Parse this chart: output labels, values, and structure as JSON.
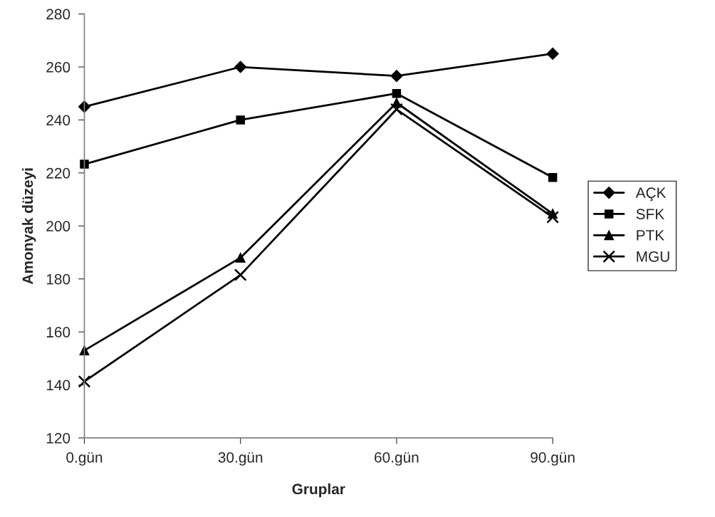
{
  "chart_data": {
    "type": "line",
    "xlabel": "Gruplar",
    "ylabel": "Amonyak düzeyi",
    "categories": [
      "0.gün",
      "30.gün",
      "60.gün",
      "90.gün"
    ],
    "series": [
      {
        "name": "AÇK",
        "color": "#000000",
        "marker": "diamond",
        "values": [
          245,
          260,
          256.6,
          265
        ]
      },
      {
        "name": "SFK",
        "color": "#000000",
        "marker": "square",
        "values": [
          223.3,
          240,
          250,
          218.3
        ]
      },
      {
        "name": "PTK",
        "color": "#000000",
        "marker": "triangle",
        "values": [
          153,
          188,
          246.5,
          204.6
        ]
      },
      {
        "name": "MGU",
        "color": "#000000",
        "marker": "cross",
        "values": [
          141.3,
          181.5,
          244,
          203.3
        ]
      }
    ],
    "ylim": [
      120,
      280
    ],
    "yticks": [
      120,
      140,
      160,
      180,
      200,
      220,
      240,
      260,
      280
    ],
    "grid": false,
    "legend": "right",
    "line_style": "solid"
  }
}
